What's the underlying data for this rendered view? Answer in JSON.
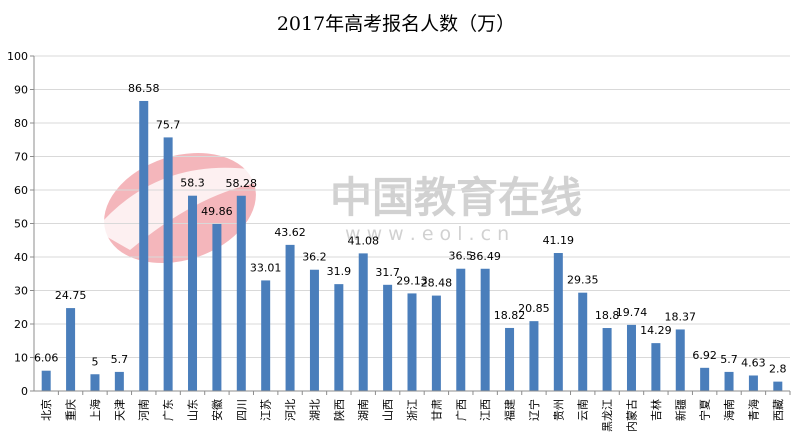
{
  "chart_data": {
    "type": "bar",
    "title": "2017年高考报名人数（万）",
    "categories": [
      "北京",
      "重庆",
      "上海",
      "天津",
      "河南",
      "广东",
      "山东",
      "安徽",
      "四川",
      "江苏",
      "河北",
      "湖北",
      "陕西",
      "湖南",
      "山西",
      "浙江",
      "甘肃",
      "广西",
      "江西",
      "福建",
      "辽宁",
      "贵州",
      "云南",
      "黑龙江",
      "内蒙古",
      "吉林",
      "新疆",
      "宁夏",
      "海南",
      "青海",
      "西藏"
    ],
    "value_labels": [
      "6.06",
      "24.75",
      "5",
      "5.7",
      "86.58",
      "75.7",
      "58.3",
      "49.86",
      "58.28",
      "33.01",
      "43.62",
      "36.2",
      "31.9",
      "41.08",
      "31.7",
      "29.13",
      "28.48",
      "36.5",
      "36.49",
      "18.82",
      "20.85",
      "41.19",
      "29.35",
      "18.8",
      "19.74",
      "14.29",
      "18.37",
      "6.92",
      "5.7",
      "4.63",
      "2.8"
    ],
    "values": [
      6.06,
      24.75,
      5,
      5.7,
      86.58,
      75.7,
      58.3,
      49.86,
      58.28,
      33.01,
      43.62,
      36.2,
      31.9,
      41.08,
      31.7,
      29.13,
      28.48,
      36.5,
      36.49,
      18.82,
      20.85,
      41.19,
      29.35,
      18.8,
      19.74,
      14.29,
      18.37,
      6.92,
      5.7,
      4.63,
      2.8
    ],
    "y_ticks": [
      "0",
      "10",
      "20",
      "30",
      "40",
      "50",
      "60",
      "70",
      "80",
      "90",
      "100"
    ],
    "ylim": [
      0,
      100
    ],
    "grid": true,
    "bar_color": "#4a7ebb",
    "grid_color": "#d9d9d9"
  },
  "watermark": {
    "text": "中国教育在线",
    "url": "w w w . e o l . c n"
  }
}
